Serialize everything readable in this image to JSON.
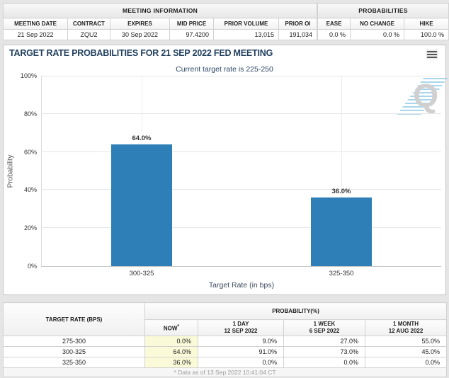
{
  "meeting_information": {
    "title": "MEETING INFORMATION",
    "columns": [
      "MEETING DATE",
      "CONTRACT",
      "EXPIRES",
      "MID PRICE",
      "PRIOR VOLUME",
      "PRIOR OI"
    ],
    "values": [
      "21 Sep 2022",
      "ZQU2",
      "30 Sep 2022",
      "97.4200",
      "13,015",
      "191,034"
    ]
  },
  "probabilities_summary": {
    "title": "PROBABILITIES",
    "columns": [
      "EASE",
      "NO CHANGE",
      "HIKE"
    ],
    "values": [
      "0.0 %",
      "0.0 %",
      "100.0 %"
    ]
  },
  "chart_data": {
    "type": "bar",
    "title": "TARGET RATE PROBABILITIES FOR 21 SEP 2022 FED MEETING",
    "subtitle": "Current target rate is 225-250",
    "categories": [
      "300-325",
      "325-350"
    ],
    "values": [
      64.0,
      36.0
    ],
    "value_labels": [
      "64.0%",
      "36.0%"
    ],
    "xlabel": "Target Rate (in bps)",
    "ylabel": "Probability",
    "ylim": [
      0,
      100
    ],
    "ytick_labels": [
      "0%",
      "20%",
      "40%",
      "60%",
      "80%",
      "100%"
    ],
    "grid": true,
    "legend": "none",
    "bar_color": "#2e7fb7",
    "watermark": "Q"
  },
  "probability_table": {
    "col1_header": "TARGET RATE (BPS)",
    "group_header": "PROBABILITY(%)",
    "now_label": "NOW",
    "now_sup": "*",
    "sub_headers": [
      {
        "line1": "1 DAY",
        "line2": "12 SEP 2022"
      },
      {
        "line1": "1 WEEK",
        "line2": "6 SEP 2022"
      },
      {
        "line1": "1 MONTH",
        "line2": "12 AUG 2022"
      }
    ],
    "rows": [
      {
        "rate": "275-300",
        "now": "0.0%",
        "day": "9.0%",
        "week": "27.0%",
        "month": "55.0%"
      },
      {
        "rate": "300-325",
        "now": "64.0%",
        "day": "91.0%",
        "week": "73.0%",
        "month": "45.0%"
      },
      {
        "rate": "325-350",
        "now": "36.0%",
        "day": "0.0%",
        "week": "0.0%",
        "month": "0.0%"
      }
    ],
    "footnote": "* Data as of 13 Sep 2022 10:41:04 CT"
  }
}
